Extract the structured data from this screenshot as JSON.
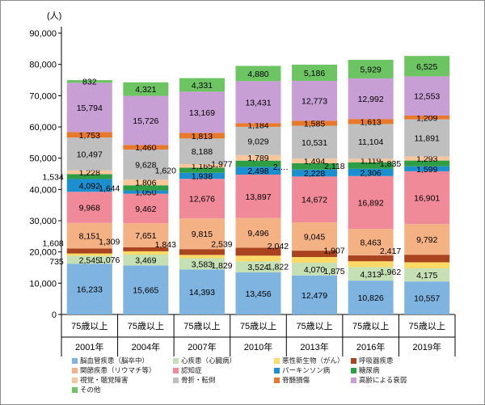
{
  "chart_data": {
    "type": "bar",
    "stacked": true,
    "ylabel": "(人)",
    "ylim": [
      0,
      90000
    ],
    "yticks": [
      0,
      10000,
      20000,
      30000,
      40000,
      50000,
      60000,
      70000,
      80000,
      90000
    ],
    "ytick_labels": [
      "0",
      "10,000",
      "20,000",
      "30,000",
      "40,000",
      "50,000",
      "60,000",
      "70,000",
      "80,000",
      "90,000"
    ],
    "categories": [
      "75歳以上",
      "75歳以上",
      "75歳以上",
      "75歳以上",
      "75歳以上",
      "75歳以上",
      "75歳以上"
    ],
    "years": [
      "2001年",
      "2004年",
      "2007年",
      "2010年",
      "2013年",
      "2016年",
      "2019年"
    ],
    "grid": false,
    "legend_position": "bottom",
    "series": [
      {
        "name": "脳血管疾患（脳卒中）",
        "color": "#7fb3e0",
        "values": [
          16233,
          15665,
          14393,
          13456,
          12479,
          10826,
          10557
        ],
        "labels": [
          "16,233",
          "15,665",
          "14,393",
          "13,456",
          "12,479",
          "10,826",
          "10,557"
        ]
      },
      {
        "name": "心疾患（心臓病）",
        "color": "#c5e0b4",
        "values": [
          2545,
          3469,
          3583,
          3524,
          4070,
          4313,
          4175
        ],
        "labels": [
          "2,545",
          "3,469",
          "3,583",
          "3,524",
          "4,070",
          "4,313",
          "4,175"
        ]
      },
      {
        "name": "悪性新生物（がん）",
        "color": "#ffd966",
        "values": [
          735,
          1076,
          1076,
          1829,
          1822,
          1875,
          1962
        ],
        "labels": [
          "735",
          "1,076",
          "",
          "1,829",
          "1,822",
          "1,875",
          "1,962"
        ]
      },
      {
        "name": "呼吸器疾患",
        "color": "#a9441f",
        "values": [
          1608,
          1309,
          1843,
          2539,
          2042,
          1907,
          2417
        ],
        "labels": [
          "1,608",
          "1,309",
          "1,843",
          "2,539",
          "2,042",
          "1,907",
          "2,417"
        ]
      },
      {
        "name": "関節疾患（リウマチ等）",
        "color": "#f4b183",
        "values": [
          8151,
          7651,
          9815,
          9496,
          9045,
          8463,
          9792
        ],
        "labels": [
          "8,151",
          "7,651",
          "9,815",
          "9,496",
          "9,045",
          "8,463",
          "9,792"
        ]
      },
      {
        "name": "認知症",
        "color": "#f08a98",
        "values": [
          9968,
          9462,
          12676,
          13897,
          14672,
          16892,
          16901
        ],
        "labels": [
          "9,968",
          "9,462",
          "12,676",
          "13,897",
          "14,672",
          "16,892",
          "16,901"
        ]
      },
      {
        "name": "パーキンソン病",
        "color": "#1c8fd0",
        "values": [
          4092,
          1050,
          1938,
          2498,
          2228,
          2306,
          1599
        ],
        "labels": [
          "4,092",
          "1,050",
          "1,938",
          "2,498",
          "2,228",
          "2,306",
          "1,599"
        ]
      },
      {
        "name": "糖尿病",
        "color": "#2e9e44",
        "values": [
          1534,
          1644,
          1620,
          1977,
          2000,
          2118,
          1835
        ],
        "labels": [
          "1,534",
          "1,644",
          "1,620",
          "1,977",
          "2,…",
          "2,118",
          "1,835"
        ]
      },
      {
        "name": "視覚・聴覚障害",
        "color": "#f7c79b",
        "values": [
          1228,
          1806,
          1165,
          1789,
          1494,
          1119,
          1293
        ],
        "labels": [
          "1,228",
          "1,806",
          "1,165",
          "1,789",
          "1,494",
          "1,119",
          "1,293"
        ]
      },
      {
        "name": "骨折・転倒",
        "color": "#bfbfbf",
        "values": [
          10497,
          9628,
          8188,
          9029,
          10531,
          11104,
          11891
        ],
        "labels": [
          "10,497",
          "9,628",
          "8,188",
          "9,029",
          "10,531",
          "11,104",
          "11,891"
        ]
      },
      {
        "name": "脊髄損傷",
        "color": "#e8792b",
        "values": [
          1753,
          1460,
          1813,
          1184,
          1585,
          1613,
          1209
        ],
        "labels": [
          "1,753",
          "1,460",
          "1,813",
          "1,184",
          "1,585",
          "1,613",
          "1,209"
        ]
      },
      {
        "name": "高齢による衰弱",
        "color": "#c79fd4",
        "values": [
          15794,
          15726,
          13169,
          13431,
          12773,
          12992,
          12553
        ],
        "labels": [
          "15,794",
          "15,726",
          "13,169",
          "13,431",
          "12,773",
          "12,992",
          "12,553"
        ]
      },
      {
        "name": "その他",
        "color": "#6cc463",
        "values": [
          832,
          4321,
          4331,
          4880,
          5186,
          5929,
          6525
        ],
        "labels": [
          "832",
          "4,321",
          "4,331",
          "4,880",
          "5,186",
          "5,929",
          "6,525"
        ]
      }
    ]
  }
}
